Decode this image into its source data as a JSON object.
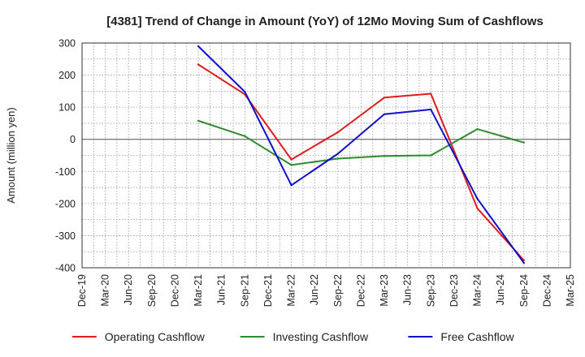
{
  "chart_data": {
    "type": "line",
    "title": "[4381]  Trend of Change in Amount (YoY) of 12Mo Moving Sum of Cashflows",
    "ylabel": "Amount (million yen)",
    "xlabel": "",
    "ylim": [
      -400,
      300
    ],
    "yticks": [
      300,
      200,
      100,
      0,
      -100,
      -200,
      -300,
      -400
    ],
    "categories": [
      "Dec-19",
      "Mar-20",
      "Jun-20",
      "Sep-20",
      "Dec-20",
      "Mar-21",
      "Jun-21",
      "Sep-21",
      "Dec-21",
      "Mar-22",
      "Jun-22",
      "Sep-22",
      "Dec-22",
      "Mar-23",
      "Jun-23",
      "Sep-23",
      "Dec-23",
      "Mar-24",
      "Jun-24",
      "Sep-24",
      "Dec-24",
      "Mar-25"
    ],
    "grid": true,
    "legend_position": "bottom",
    "series": [
      {
        "name": "Operating Cashflow",
        "color": "#e31a1c",
        "values": [
          null,
          null,
          null,
          null,
          null,
          233,
          null,
          140,
          null,
          -63,
          null,
          22,
          null,
          130,
          null,
          142,
          null,
          -215,
          null,
          -377,
          null,
          null
        ]
      },
      {
        "name": "Investing Cashflow",
        "color": "#2e8b2e",
        "values": [
          null,
          null,
          null,
          null,
          null,
          58,
          null,
          10,
          null,
          -80,
          null,
          -60,
          null,
          -52,
          null,
          -50,
          null,
          32,
          null,
          -10,
          null,
          null
        ]
      },
      {
        "name": "Free Cashflow",
        "color": "#1010cc",
        "values": [
          null,
          null,
          null,
          null,
          null,
          290,
          null,
          148,
          null,
          -143,
          null,
          -45,
          null,
          78,
          null,
          93,
          null,
          -185,
          null,
          -385,
          null,
          null
        ]
      }
    ]
  }
}
